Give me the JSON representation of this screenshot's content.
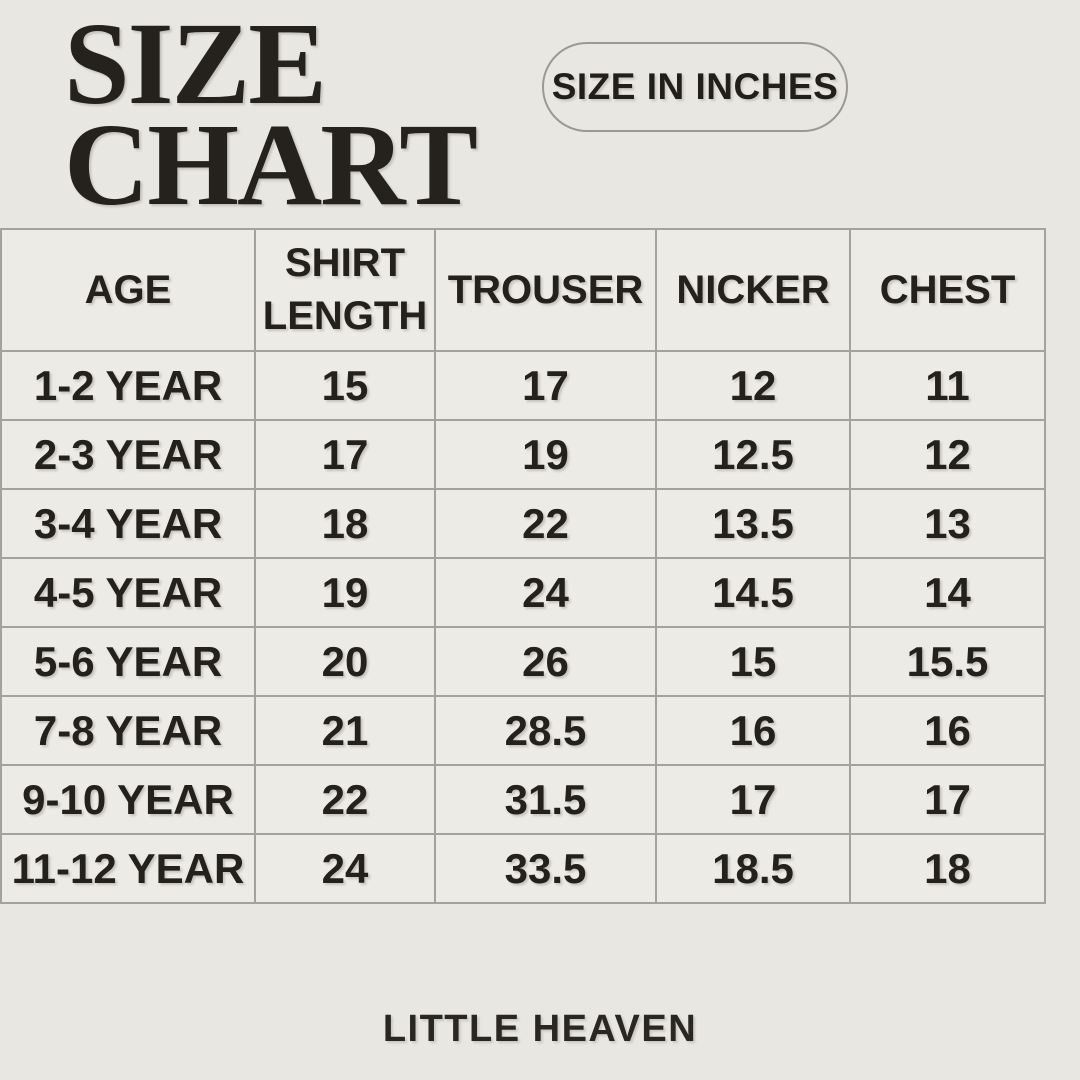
{
  "colors": {
    "background": "#e9e7e2",
    "cell_background": "#edebe6",
    "table_border": "#a4a29c",
    "text": "#23201d",
    "badge_border": "#9b9992"
  },
  "header": {
    "title_lines": [
      "SIZE",
      "CHART"
    ],
    "badge_label": "SIZE IN INCHES"
  },
  "footer": {
    "brand": "LITTLE HEAVEN"
  },
  "chart_data": {
    "type": "table",
    "title": "SIZE CHART",
    "units_note": "SIZE IN INCHES",
    "columns": [
      "AGE",
      "SHIRT LENGTH",
      "TROUSER",
      "NICKER",
      "CHEST"
    ],
    "rows": [
      [
        "1-2 YEAR",
        "15",
        "17",
        "12",
        "11"
      ],
      [
        "2-3 YEAR",
        "17",
        "19",
        "12.5",
        "12"
      ],
      [
        "3-4 YEAR",
        "18",
        "22",
        "13.5",
        "13"
      ],
      [
        "4-5 YEAR",
        "19",
        "24",
        "14.5",
        "14"
      ],
      [
        "5-6 YEAR",
        "20",
        "26",
        "15",
        "15.5"
      ],
      [
        "7-8 YEAR",
        "21",
        "28.5",
        "16",
        "16"
      ],
      [
        "9-10 YEAR",
        "22",
        "31.5",
        "17",
        "17"
      ],
      [
        "11-12 YEAR",
        "24",
        "33.5",
        "18.5",
        "18"
      ]
    ],
    "brand": "LITTLE HEAVEN"
  }
}
